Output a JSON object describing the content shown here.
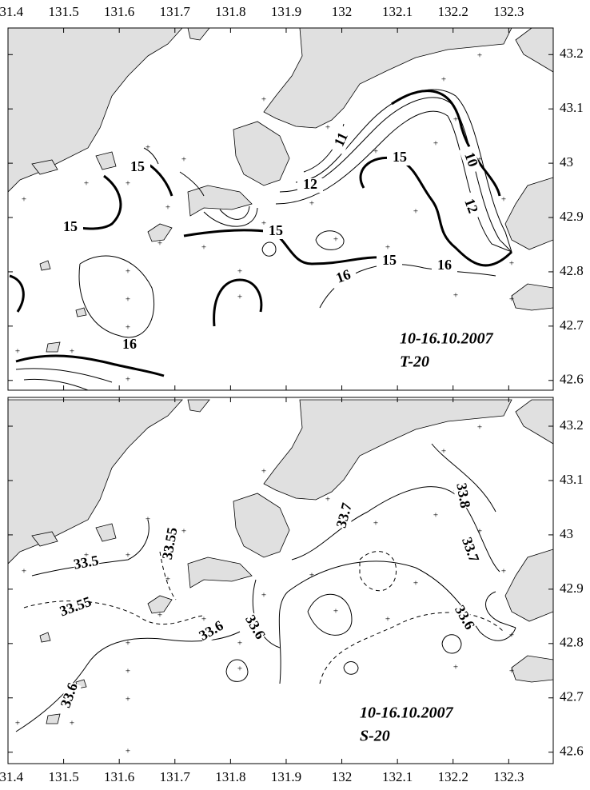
{
  "x_axis": {
    "ticks": [
      131.4,
      131.5,
      131.6,
      131.7,
      131.8,
      131.9,
      132,
      132.1,
      132.2,
      132.3
    ],
    "xlim": [
      131.4,
      132.38
    ]
  },
  "panels": [
    {
      "ylim": [
        42.582,
        43.249
      ],
      "yticks": [
        42.6,
        42.7,
        42.8,
        42.9,
        43,
        43.1,
        43.2
      ],
      "contour_labels": [
        15,
        15,
        15,
        15,
        15,
        12,
        11,
        10,
        12,
        16,
        16,
        16
      ],
      "date": "10-16.10.2007",
      "label": "T-20"
    },
    {
      "ylim": [
        42.579,
        43.253
      ],
      "yticks": [
        42.6,
        42.7,
        42.8,
        42.9,
        43,
        43.1,
        43.2
      ],
      "contour_labels": [
        33.5,
        33.55,
        33.55,
        33.6,
        33.6,
        33.7,
        33.8,
        33.7,
        33.6,
        33.6
      ],
      "date": "10-16.10.2007",
      "label": "S-20"
    }
  ]
}
